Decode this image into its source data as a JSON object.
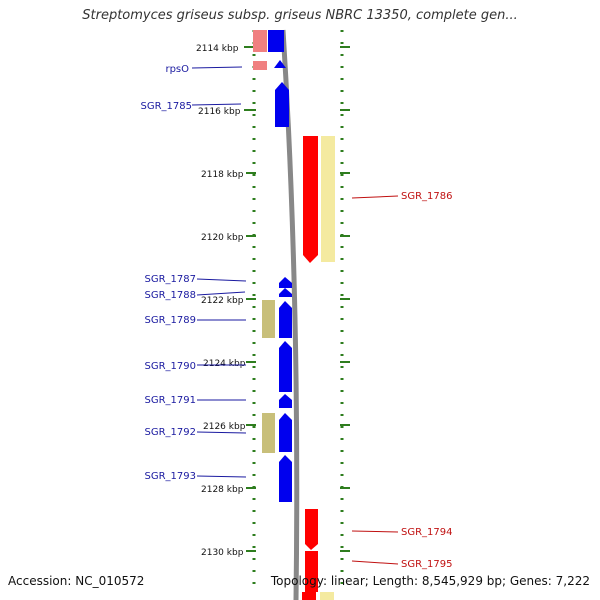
{
  "title": "Streptomyces griseus subsp. griseus NBRC 13350, complete gen...",
  "footer": {
    "accession": "Accession: NC_010572",
    "topology": "Topology: linear; Length: 8,545,929 bp; Genes: 7,222"
  },
  "ruler_ticks": [
    "2114 kbp",
    "2116 kbp",
    "2118 kbp",
    "2120 kbp",
    "2122 kbp",
    "2124 kbp",
    "2126 kbp",
    "2128 kbp",
    "2130 kbp"
  ],
  "genes_left": [
    "rpsO",
    "SGR_1785",
    "SGR_1787",
    "SGR_1788",
    "SGR_1789",
    "SGR_1790",
    "SGR_1791",
    "SGR_1792",
    "SGR_1793"
  ],
  "genes_right": [
    "SGR_1786",
    "SGR_1794",
    "SGR_1795"
  ],
  "colors": {
    "reverse_gene": "#0000ee",
    "forward_gene": "#ff0000",
    "reverse_cds_tan": "#c8bf7a",
    "forward_cds_light": "#f4eaa0",
    "backbone": "#888888",
    "dots": "#2e7d1e",
    "left_label": "#1a1aa0",
    "right_label": "#c01010"
  }
}
